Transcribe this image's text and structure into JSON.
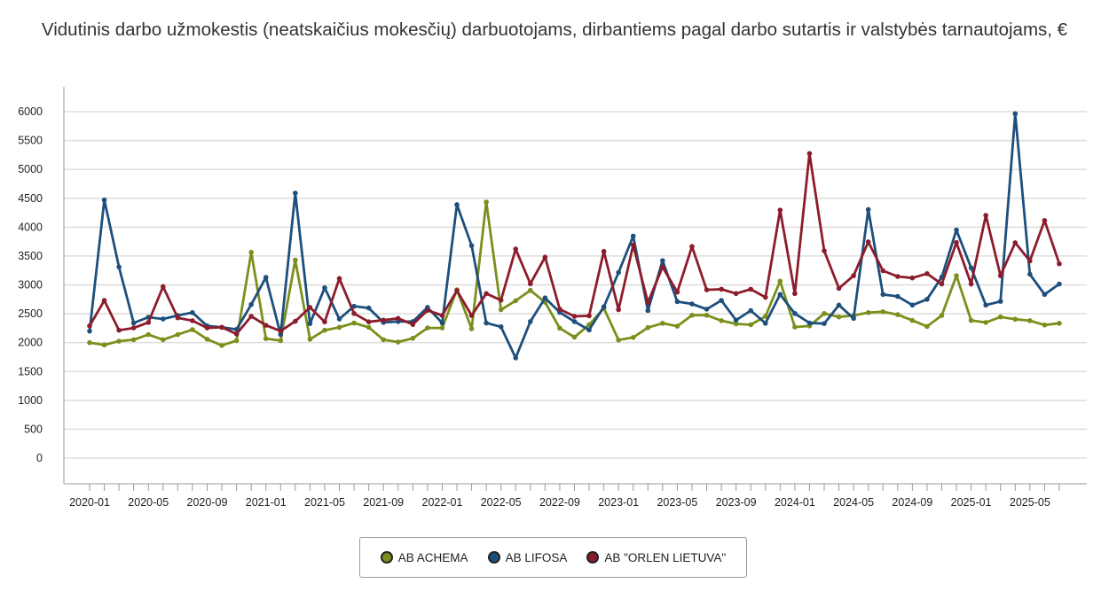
{
  "chart_data": {
    "type": "line",
    "title": "Vidutinis darbo užmokestis (neatskaičius mokesčių) darbuotojams, dirbantiems pagal darbo sutartis ir valstybės tarnautojams, €",
    "xlabel": "",
    "ylabel": "",
    "ylim": [
      -445,
      6430
    ],
    "yticks": [
      0,
      500,
      1000,
      1500,
      2000,
      2500,
      3000,
      3500,
      4000,
      4500,
      5000,
      5500,
      6000
    ],
    "grid": true,
    "legend_position": "bottom",
    "start": "2020-01",
    "x_labels": [
      "2020-01",
      "2020-05",
      "2020-09",
      "2021-01",
      "2021-05",
      "2021-09",
      "2022-01",
      "2022-05",
      "2022-09",
      "2023-01",
      "2023-05",
      "2023-09",
      "2024-01",
      "2024-05",
      "2024-09",
      "2025-01",
      "2025-05"
    ],
    "series": [
      {
        "name": "AB ACHEMA",
        "color": "#7b8f1c",
        "values": [
          2000,
          1960,
          2025,
          2050,
          2140,
          2050,
          2140,
          2225,
          2060,
          1950,
          2035,
          3565,
          2070,
          2035,
          3430,
          2060,
          2215,
          2265,
          2340,
          2265,
          2050,
          2010,
          2075,
          2255,
          2255,
          2915,
          2240,
          4435,
          2570,
          2725,
          2905,
          2700,
          2250,
          2095,
          2310,
          2595,
          2045,
          2090,
          2260,
          2335,
          2285,
          2475,
          2475,
          2380,
          2325,
          2310,
          2455,
          3065,
          2270,
          2290,
          2505,
          2445,
          2470,
          2520,
          2535,
          2485,
          2385,
          2280,
          2470,
          3160,
          2385,
          2350,
          2445,
          2405,
          2380,
          2305,
          2335
        ]
      },
      {
        "name": "AB LIFOSA",
        "color": "#1d4f7c",
        "values": [
          2200,
          4470,
          3310,
          2340,
          2440,
          2410,
          2470,
          2520,
          2290,
          2265,
          2230,
          2660,
          3130,
          2140,
          4590,
          2330,
          2950,
          2410,
          2630,
          2600,
          2350,
          2365,
          2365,
          2610,
          2340,
          4390,
          3680,
          2340,
          2275,
          1735,
          2365,
          2775,
          2525,
          2365,
          2220,
          2620,
          3215,
          3845,
          2555,
          3420,
          2710,
          2670,
          2580,
          2730,
          2390,
          2555,
          2335,
          2835,
          2505,
          2340,
          2330,
          2650,
          2420,
          4305,
          2835,
          2800,
          2650,
          2750,
          3135,
          3950,
          3295,
          2650,
          2715,
          5965,
          3185,
          2835,
          3015
        ]
      },
      {
        "name": "AB \"ORLEN LIETUVA\"",
        "color": "#8c1c2c",
        "values": [
          2290,
          2730,
          2215,
          2255,
          2350,
          2970,
          2430,
          2380,
          2255,
          2265,
          2150,
          2455,
          2300,
          2200,
          2370,
          2610,
          2360,
          3110,
          2505,
          2360,
          2390,
          2420,
          2315,
          2560,
          2470,
          2900,
          2470,
          2850,
          2735,
          3620,
          3020,
          3480,
          2580,
          2455,
          2465,
          3580,
          2570,
          3690,
          2695,
          3310,
          2875,
          3665,
          2915,
          2925,
          2850,
          2925,
          2785,
          4295,
          2850,
          5275,
          3590,
          2940,
          3160,
          3745,
          3245,
          3145,
          3120,
          3195,
          3015,
          3735,
          3015,
          4205,
          3160,
          3730,
          3415,
          4115,
          3365
        ]
      }
    ]
  }
}
